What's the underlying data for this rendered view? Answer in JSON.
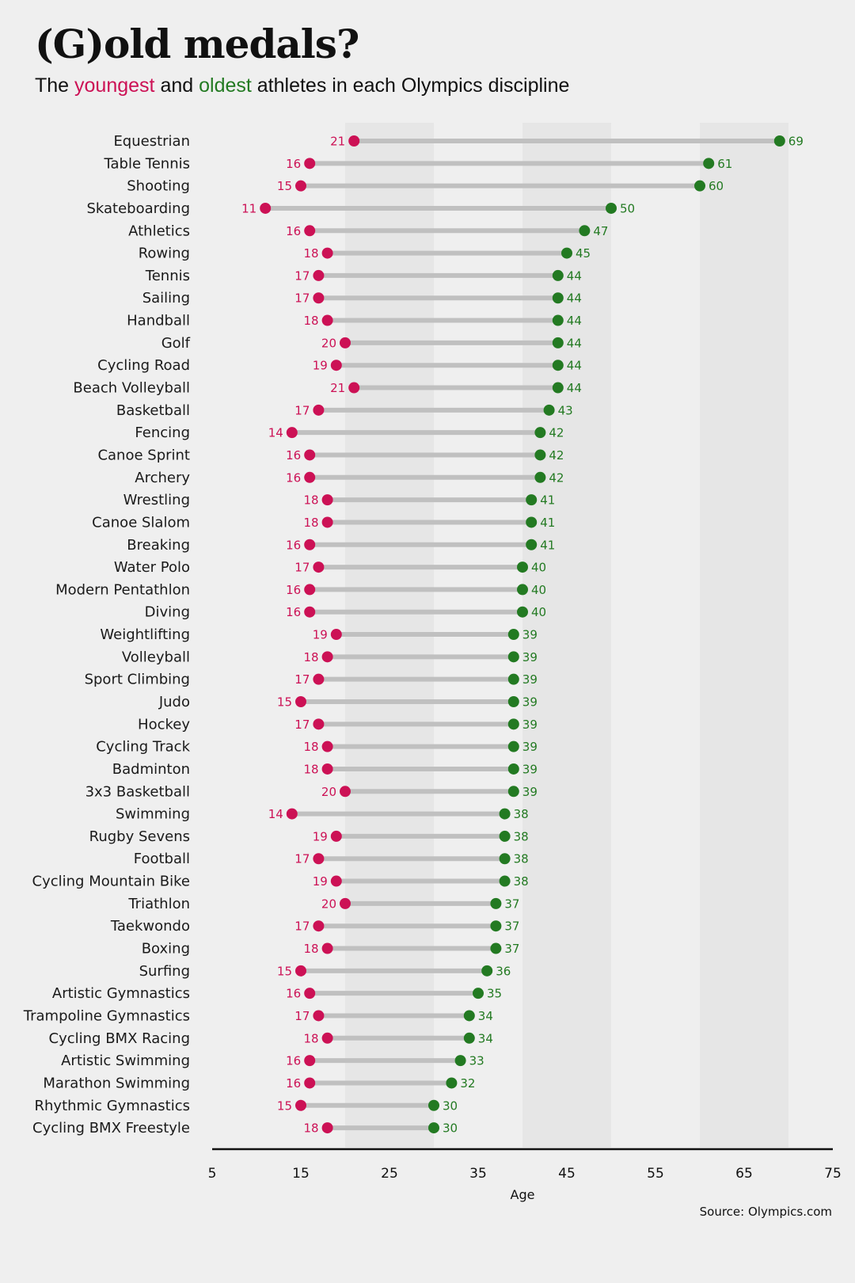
{
  "header": {
    "title": "(G)old medals?",
    "subtitle_pre": "The ",
    "subtitle_young": "youngest",
    "subtitle_mid": " and ",
    "subtitle_old": "oldest",
    "subtitle_post": " athletes in each Olympics discipline"
  },
  "colors": {
    "youngest": "#cc1155",
    "oldest": "#237a22",
    "connector": "#c0c0c0",
    "band": "#e6e6e6",
    "background": "#efefef"
  },
  "chart_data": {
    "type": "dumbbell",
    "title": "(G)old medals?",
    "subtitle": "The youngest and oldest athletes in each Olympics discipline",
    "xlabel": "Age",
    "ylabel": "",
    "xlim": [
      5,
      75
    ],
    "xticks": [
      5,
      15,
      25,
      35,
      45,
      55,
      65,
      75
    ],
    "shaded_bands": [
      [
        20,
        30
      ],
      [
        40,
        50
      ],
      [
        60,
        70
      ]
    ],
    "source": "Source: Olympics.com",
    "categories": [
      "Equestrian",
      "Table Tennis",
      "Shooting",
      "Skateboarding",
      "Athletics",
      "Rowing",
      "Tennis",
      "Sailing",
      "Handball",
      "Golf",
      "Cycling Road",
      "Beach Volleyball",
      "Basketball",
      "Fencing",
      "Canoe Sprint",
      "Archery",
      "Wrestling",
      "Canoe Slalom",
      "Breaking",
      "Water Polo",
      "Modern Pentathlon",
      "Diving",
      "Weightlifting",
      "Volleyball",
      "Sport Climbing",
      "Judo",
      "Hockey",
      "Cycling Track",
      "Badminton",
      "3x3 Basketball",
      "Swimming",
      "Rugby Sevens",
      "Football",
      "Cycling Mountain Bike",
      "Triathlon",
      "Taekwondo",
      "Boxing",
      "Surfing",
      "Artistic Gymnastics",
      "Trampoline Gymnastics",
      "Cycling BMX Racing",
      "Artistic Swimming",
      "Marathon Swimming",
      "Rhythmic Gymnastics",
      "Cycling BMX Freestyle"
    ],
    "series": [
      {
        "name": "youngest",
        "values": [
          21,
          16,
          15,
          11,
          16,
          18,
          17,
          17,
          18,
          20,
          19,
          21,
          17,
          14,
          16,
          16,
          18,
          18,
          16,
          17,
          16,
          16,
          19,
          18,
          17,
          15,
          17,
          18,
          18,
          20,
          14,
          19,
          17,
          19,
          20,
          17,
          18,
          15,
          16,
          17,
          18,
          16,
          16,
          15,
          18
        ]
      },
      {
        "name": "oldest",
        "values": [
          69,
          61,
          60,
          50,
          47,
          45,
          44,
          44,
          44,
          44,
          44,
          44,
          43,
          42,
          42,
          42,
          41,
          41,
          41,
          40,
          40,
          40,
          39,
          39,
          39,
          39,
          39,
          39,
          39,
          39,
          38,
          38,
          38,
          38,
          37,
          37,
          37,
          36,
          35,
          34,
          34,
          33,
          32,
          30,
          30
        ]
      }
    ]
  }
}
